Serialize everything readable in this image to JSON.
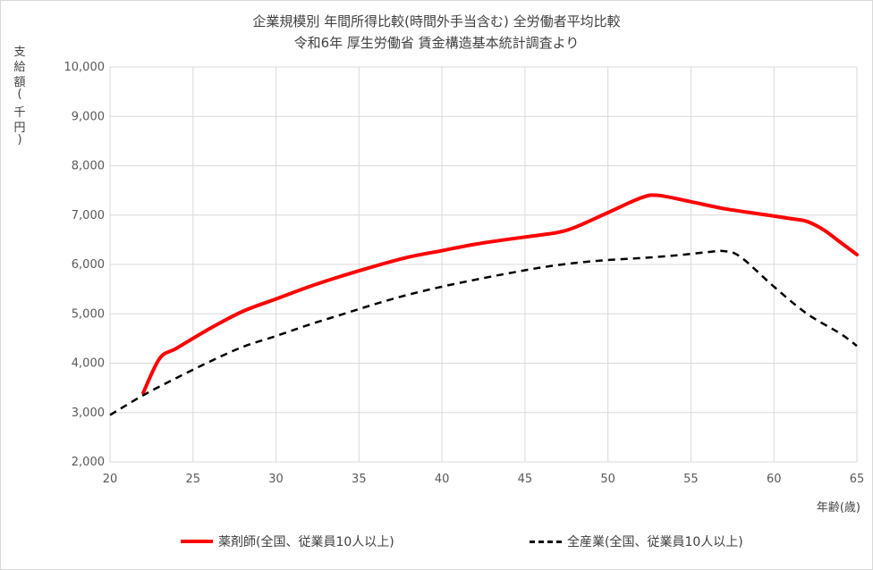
{
  "chart_data": {
    "type": "line",
    "title": "企業規模別 年間所得比較(時間外手当含む) 全労働者平均比較",
    "subtitle": "令和6年 厚生労働省 賃金構造基本統計調査より",
    "ylabel": "支給額(千円)",
    "xlabel": "年齢(歳)",
    "xlim": [
      20,
      65
    ],
    "ylim": [
      2000,
      10000
    ],
    "x_ticks": [
      "20",
      "25",
      "30",
      "35",
      "40",
      "45",
      "50",
      "55",
      "60",
      "65"
    ],
    "y_ticks": [
      "2,000",
      "3,000",
      "4,000",
      "5,000",
      "6,000",
      "7,000",
      "8,000",
      "9,000",
      "10,000"
    ],
    "grid": true,
    "legend_position": "bottom",
    "series": [
      {
        "name": "薬剤師(全国、従業員10人以上)",
        "color": "#ff0000",
        "style": "solid",
        "points": [
          [
            22,
            3400
          ],
          [
            23,
            4100
          ],
          [
            24,
            4300
          ],
          [
            26,
            4700
          ],
          [
            28,
            5050
          ],
          [
            30,
            5300
          ],
          [
            32,
            5550
          ],
          [
            34,
            5770
          ],
          [
            36,
            5970
          ],
          [
            38,
            6150
          ],
          [
            40,
            6280
          ],
          [
            42,
            6410
          ],
          [
            44,
            6510
          ],
          [
            46,
            6600
          ],
          [
            47,
            6650
          ],
          [
            48,
            6750
          ],
          [
            50,
            7050
          ],
          [
            52,
            7350
          ],
          [
            53,
            7400
          ],
          [
            55,
            7270
          ],
          [
            57,
            7130
          ],
          [
            59,
            7030
          ],
          [
            61,
            6930
          ],
          [
            62,
            6870
          ],
          [
            63,
            6700
          ],
          [
            64,
            6450
          ],
          [
            65,
            6200
          ]
        ]
      },
      {
        "name": "全産業(全国、従業員10人以上)",
        "color": "#000000",
        "style": "dashed",
        "points": [
          [
            20,
            2950
          ],
          [
            22,
            3350
          ],
          [
            24,
            3700
          ],
          [
            26,
            4030
          ],
          [
            28,
            4330
          ],
          [
            30,
            4550
          ],
          [
            32,
            4780
          ],
          [
            34,
            4990
          ],
          [
            36,
            5200
          ],
          [
            38,
            5390
          ],
          [
            40,
            5550
          ],
          [
            42,
            5690
          ],
          [
            44,
            5820
          ],
          [
            46,
            5940
          ],
          [
            48,
            6030
          ],
          [
            50,
            6090
          ],
          [
            52,
            6130
          ],
          [
            54,
            6180
          ],
          [
            56,
            6250
          ],
          [
            57,
            6270
          ],
          [
            58,
            6150
          ],
          [
            60,
            5550
          ],
          [
            62,
            5000
          ],
          [
            64,
            4600
          ],
          [
            65,
            4350
          ]
        ]
      }
    ]
  }
}
